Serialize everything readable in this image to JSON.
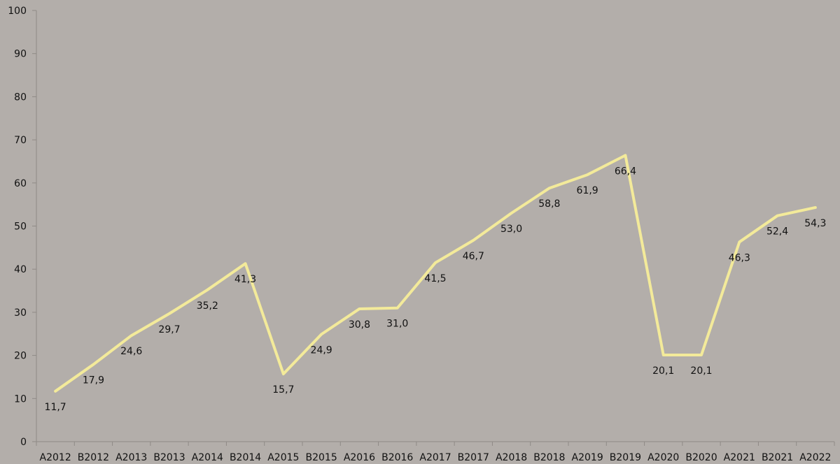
{
  "colors": {
    "background": "#b3aeaa",
    "line": "#f3ea9a",
    "axis": "#8f8a86",
    "text": "#111111"
  },
  "chart_data": {
    "type": "line",
    "categories": [
      "A2012",
      "B2012",
      "A2013",
      "B2013",
      "A2014",
      "B2014",
      "A2015",
      "B2015",
      "A2016",
      "B2016",
      "A2017",
      "B2017",
      "A2018",
      "B2018",
      "A2019",
      "B2019",
      "A2020",
      "B2020",
      "A2021",
      "B2021",
      "A2022"
    ],
    "series": [
      {
        "values": [
          11.7,
          17.9,
          24.6,
          29.7,
          35.2,
          41.3,
          15.7,
          24.9,
          30.8,
          31.0,
          41.5,
          46.7,
          53.0,
          58.8,
          61.9,
          66.4,
          20.1,
          20.1,
          46.3,
          52.4,
          54.3
        ],
        "data_labels": [
          "11,7",
          "17,9",
          "24,6",
          "29,7",
          "35,2",
          "41,3",
          "15,7",
          "24,9",
          "30,8",
          "31,0",
          "41,5",
          "46,7",
          "53,0",
          "58,8",
          "61,9",
          "66,4",
          "20,1",
          "20,1",
          "46,3",
          "52,4",
          "54,3"
        ]
      }
    ],
    "yticks": [
      "0",
      "10",
      "20",
      "30",
      "40",
      "50",
      "60",
      "70",
      "80",
      "90",
      "100"
    ],
    "ylim": [
      0,
      100
    ],
    "grid": false,
    "legend": "none"
  }
}
